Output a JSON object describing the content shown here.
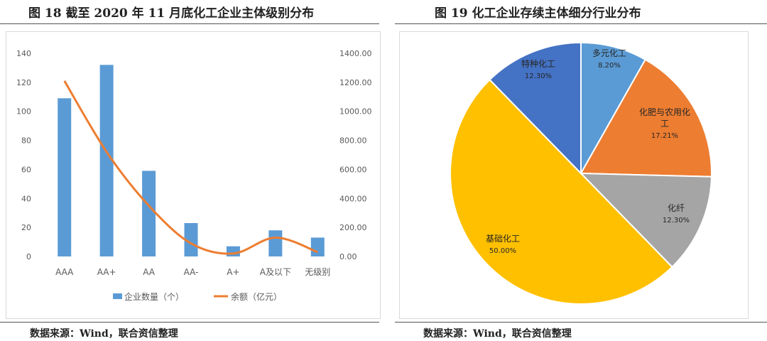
{
  "figures": {
    "left_title": "图 18    截至 2020 年 11 月底化工企业主体级别分布",
    "right_title": "图 19    化工企业存续主体细分行业分布",
    "left_source": "数据来源：Wind，联合资信整理",
    "right_source": "数据来源：Wind，联合资信整理"
  },
  "colors": {
    "bar": "#5b9bd5",
    "line": "#ed7d31",
    "grid": "#d9d9d9",
    "axis_text": "#595959"
  },
  "chart_data": [
    {
      "type": "bar",
      "title": "",
      "categories": [
        "AAA",
        "AA+",
        "AA",
        "AA-",
        "A+",
        "A及以下",
        "无级别"
      ],
      "series": [
        {
          "name": "企业数量（个）",
          "type": "bar",
          "axis": "left",
          "values": [
            109,
            132,
            59,
            23,
            7,
            18,
            13
          ]
        },
        {
          "name": "余额（亿元）",
          "type": "line",
          "axis": "right",
          "values": [
            1210,
            720,
            350,
            90,
            20,
            130,
            30
          ]
        }
      ],
      "left_ylim": [
        0,
        140
      ],
      "left_yticks": [
        "0",
        "20",
        "40",
        "60",
        "80",
        "100",
        "120",
        "140"
      ],
      "right_ylim": [
        0,
        1400
      ],
      "right_yticks": [
        "0.00",
        "200.00",
        "400.00",
        "600.00",
        "800.00",
        "1000.00",
        "1200.00",
        "1400.00"
      ],
      "grid": false,
      "legend": "bottom"
    },
    {
      "type": "pie",
      "title": "",
      "slices": [
        {
          "label": "多元化工",
          "value": 8.2,
          "pct": "8.20%",
          "color": "#5b9bd5"
        },
        {
          "label": "化肥与农用化工",
          "value": 17.21,
          "pct": "17.21%",
          "color": "#ed7d31"
        },
        {
          "label": "化纤",
          "value": 12.3,
          "pct": "12.30%",
          "color": "#a5a5a5"
        },
        {
          "label": "基础化工",
          "value": 50.0,
          "pct": "50.00%",
          "color": "#ffc000"
        },
        {
          "label": "特种化工",
          "value": 12.3,
          "pct": "12.30%",
          "color": "#4472c4"
        }
      ],
      "legend": "none"
    }
  ]
}
